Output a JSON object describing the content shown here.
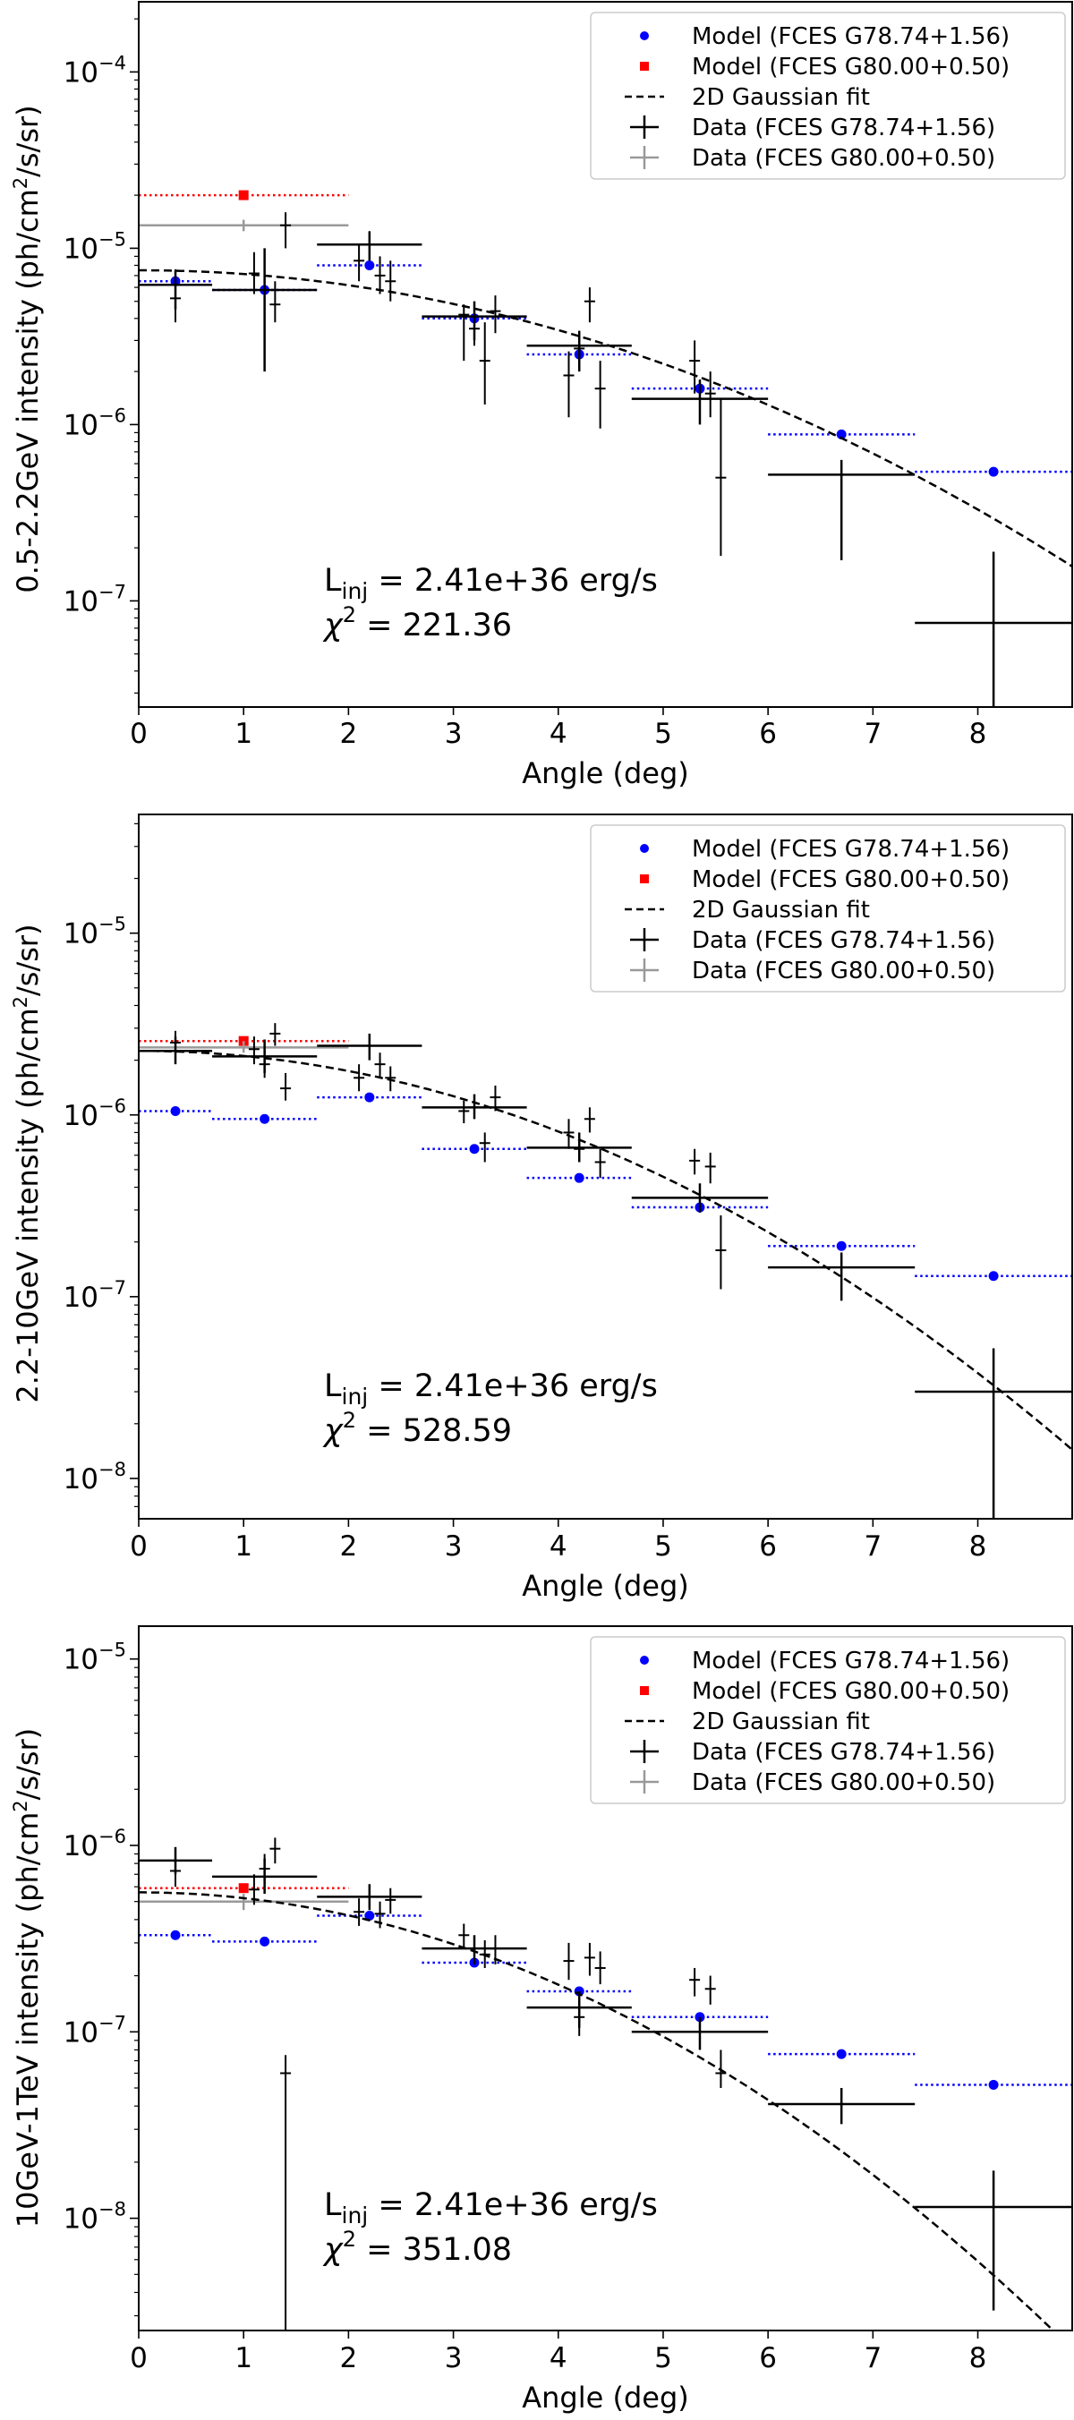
{
  "chart_data": [
    {
      "type": "scatter",
      "panel": "top",
      "xlabel": "Angle (deg)",
      "ylabel": "0.5-2.2GeV intensity (ph/cm2/s/sr)",
      "ylabel_parts": {
        "main": "0.5-2.2GeV intensity (ph/cm",
        "sup": "2",
        "tail": "/s/sr)"
      },
      "xlim": [
        0,
        8.9
      ],
      "ylim": [
        2.5e-08,
        0.00025
      ],
      "x_ticks": [
        "0",
        "1",
        "2",
        "3",
        "4",
        "5",
        "6",
        "7",
        "8"
      ],
      "y_ticks": [
        {
          "base": "10",
          "exp": "−7",
          "value": 1e-07
        },
        {
          "base": "10",
          "exp": "−6",
          "value": 1e-06
        },
        {
          "base": "10",
          "exp": "−5",
          "value": 1e-05
        },
        {
          "base": "10",
          "exp": "−4",
          "value": 0.0001
        }
      ],
      "annotation": {
        "linj_prefix": "L",
        "linj_sub": "inj",
        "linj_value": " = 2.41e+36 erg/s",
        "chi_prefix": "χ",
        "chi_sup": "2",
        "chi_value": " = 221.36"
      },
      "legend": [
        "Model (FCES G78.74+1.56)",
        "Model (FCES G80.00+0.50)",
        "2D Gaussian fit",
        "Data (FCES G78.74+1.56)",
        "Data (FCES G80.00+0.50)"
      ],
      "gauss_fit": {
        "amplitude": 7.5e-06,
        "sigma": 3.2
      },
      "model_g78": [
        {
          "x": 0.35,
          "y": 6.5e-06,
          "xlo": 0,
          "xhi": 0.7
        },
        {
          "x": 1.2,
          "y": 5.8e-06,
          "xlo": 0.7,
          "xhi": 1.7
        },
        {
          "x": 2.2,
          "y": 8e-06,
          "xlo": 1.7,
          "xhi": 2.7
        },
        {
          "x": 3.2,
          "y": 4e-06,
          "xlo": 2.7,
          "xhi": 3.7
        },
        {
          "x": 4.2,
          "y": 2.5e-06,
          "xlo": 3.7,
          "xhi": 4.7
        },
        {
          "x": 5.35,
          "y": 1.6e-06,
          "xlo": 4.7,
          "xhi": 6.0
        },
        {
          "x": 6.7,
          "y": 8.8e-07,
          "xlo": 6.0,
          "xhi": 7.4
        },
        {
          "x": 8.15,
          "y": 5.4e-07,
          "xlo": 7.4,
          "xhi": 8.9
        }
      ],
      "model_g80": [
        {
          "x": 1.0,
          "y": 2e-05,
          "xlo": 0,
          "xhi": 2.0
        }
      ],
      "data_g80": [
        {
          "x": 1.0,
          "y": 1.35e-05,
          "xlo": 0,
          "xhi": 2.0,
          "ylo": 1.25e-05,
          "yhi": 1.45e-05
        }
      ],
      "data_g78_binned": [
        {
          "x": 0.35,
          "y": 6.2e-06,
          "xlo": 0,
          "xhi": 0.7,
          "ylo": 4.5e-06,
          "yhi": 7.5e-06
        },
        {
          "x": 1.2,
          "y": 5.8e-06,
          "xlo": 0.7,
          "xhi": 1.7,
          "ylo": 2e-06,
          "yhi": 1e-05
        },
        {
          "x": 2.2,
          "y": 1.05e-05,
          "xlo": 1.7,
          "xhi": 2.7,
          "ylo": 8.5e-06,
          "yhi": 1.25e-05
        },
        {
          "x": 3.2,
          "y": 4.1e-06,
          "xlo": 2.7,
          "xhi": 3.7,
          "ylo": 3e-06,
          "yhi": 5e-06
        },
        {
          "x": 4.2,
          "y": 2.8e-06,
          "xlo": 3.7,
          "xhi": 4.7,
          "ylo": 2e-06,
          "yhi": 3.4e-06
        },
        {
          "x": 5.35,
          "y": 1.4e-06,
          "xlo": 4.7,
          "xhi": 6.0,
          "ylo": 1e-06,
          "yhi": 1.8e-06
        },
        {
          "x": 6.7,
          "y": 5.2e-07,
          "xlo": 6.0,
          "xhi": 7.4,
          "ylo": 1.7e-07,
          "yhi": 6.3e-07
        },
        {
          "x": 8.15,
          "y": 7.5e-08,
          "xlo": 7.4,
          "xhi": 8.9,
          "ylo": 2.5e-08,
          "yhi": 1.9e-07
        }
      ],
      "data_g78_points": [
        {
          "x": 0.35,
          "y": 5.2e-06,
          "ylo": 3.8e-06,
          "yhi": 7.6e-06
        },
        {
          "x": 1.1,
          "y": 7.2e-06,
          "ylo": 5.5e-06,
          "yhi": 9.5e-06
        },
        {
          "x": 1.3,
          "y": 4.8e-06,
          "ylo": 3.8e-06,
          "yhi": 6.5e-06
        },
        {
          "x": 1.4,
          "y": 1.35e-05,
          "ylo": 1e-05,
          "yhi": 1.6e-05
        },
        {
          "x": 2.1,
          "y": 8.5e-06,
          "ylo": 6.5e-06,
          "yhi": 1.05e-05
        },
        {
          "x": 2.3,
          "y": 7e-06,
          "ylo": 5.5e-06,
          "yhi": 9e-06
        },
        {
          "x": 2.4,
          "y": 6.5e-06,
          "ylo": 5e-06,
          "yhi": 8.5e-06
        },
        {
          "x": 3.1,
          "y": 4.2e-06,
          "ylo": 2.3e-06,
          "yhi": 4.8e-06
        },
        {
          "x": 3.2,
          "y": 3.5e-06,
          "ylo": 2.8e-06,
          "yhi": 5e-06
        },
        {
          "x": 3.3,
          "y": 2.3e-06,
          "ylo": 1.3e-06,
          "yhi": 3.8e-06
        },
        {
          "x": 3.4,
          "y": 4.4e-06,
          "ylo": 3.3e-06,
          "yhi": 5.4e-06
        },
        {
          "x": 4.1,
          "y": 1.9e-06,
          "ylo": 1.1e-06,
          "yhi": 2.6e-06
        },
        {
          "x": 4.2,
          "y": 2.7e-06,
          "ylo": 2e-06,
          "yhi": 3.4e-06
        },
        {
          "x": 4.3,
          "y": 5e-06,
          "ylo": 3.8e-06,
          "yhi": 6e-06
        },
        {
          "x": 4.4,
          "y": 1.6e-06,
          "ylo": 9.5e-07,
          "yhi": 2.3e-06
        },
        {
          "x": 5.3,
          "y": 2.3e-06,
          "ylo": 1.5e-06,
          "yhi": 3e-06
        },
        {
          "x": 5.45,
          "y": 1.5e-06,
          "ylo": 1.1e-06,
          "yhi": 2e-06
        },
        {
          "x": 5.55,
          "y": 5e-07,
          "ylo": 1.8e-07,
          "yhi": 1.4e-06
        }
      ]
    },
    {
      "type": "scatter",
      "panel": "middle",
      "xlabel": "Angle (deg)",
      "ylabel": "2.2-10GeV intensity (ph/cm2/s/sr)",
      "ylabel_parts": {
        "main": "2.2-10GeV intensity (ph/cm",
        "sup": "2",
        "tail": "/s/sr)"
      },
      "xlim": [
        0,
        8.9
      ],
      "ylim": [
        6e-09,
        4.5e-05
      ],
      "x_ticks": [
        "0",
        "1",
        "2",
        "3",
        "4",
        "5",
        "6",
        "7",
        "8"
      ],
      "y_ticks": [
        {
          "base": "10",
          "exp": "−8",
          "value": 1e-08
        },
        {
          "base": "10",
          "exp": "−7",
          "value": 1e-07
        },
        {
          "base": "10",
          "exp": "−6",
          "value": 1e-06
        },
        {
          "base": "10",
          "exp": "−5",
          "value": 1e-05
        }
      ],
      "annotation": {
        "linj_prefix": "L",
        "linj_sub": "inj",
        "linj_value": " = 2.41e+36 erg/s",
        "chi_prefix": "χ",
        "chi_sup": "2",
        "chi_value": " = 528.59"
      },
      "legend": [
        "Model (FCES G78.74+1.56)",
        "Model (FCES G80.00+0.50)",
        "2D Gaussian fit",
        "Data (FCES G78.74+1.56)",
        "Data (FCES G80.00+0.50)"
      ],
      "gauss_fit": {
        "amplitude": 2.25e-06,
        "sigma": 2.8
      },
      "model_g78": [
        {
          "x": 0.35,
          "y": 1.05e-06,
          "xlo": 0,
          "xhi": 0.7
        },
        {
          "x": 1.2,
          "y": 9.5e-07,
          "xlo": 0.7,
          "xhi": 1.7
        },
        {
          "x": 2.2,
          "y": 1.25e-06,
          "xlo": 1.7,
          "xhi": 2.7
        },
        {
          "x": 3.2,
          "y": 6.5e-07,
          "xlo": 2.7,
          "xhi": 3.7
        },
        {
          "x": 4.2,
          "y": 4.5e-07,
          "xlo": 3.7,
          "xhi": 4.7
        },
        {
          "x": 5.35,
          "y": 3.1e-07,
          "xlo": 4.7,
          "xhi": 6.0
        },
        {
          "x": 6.7,
          "y": 1.9e-07,
          "xlo": 6.0,
          "xhi": 7.4
        },
        {
          "x": 8.15,
          "y": 1.3e-07,
          "xlo": 7.4,
          "xhi": 8.9
        }
      ],
      "model_g80": [
        {
          "x": 1.0,
          "y": 2.55e-06,
          "xlo": 0,
          "xhi": 2.0
        }
      ],
      "data_g80": [
        {
          "x": 1.0,
          "y": 2.35e-06,
          "xlo": 0,
          "xhi": 2.0,
          "ylo": 2.2e-06,
          "yhi": 2.55e-06
        }
      ],
      "data_g78_binned": [
        {
          "x": 0.35,
          "y": 2.25e-06,
          "xlo": 0,
          "xhi": 0.7,
          "ylo": 1.9e-06,
          "yhi": 2.7e-06
        },
        {
          "x": 1.2,
          "y": 2.1e-06,
          "xlo": 0.7,
          "xhi": 1.7,
          "ylo": 1.7e-06,
          "yhi": 2.6e-06
        },
        {
          "x": 2.2,
          "y": 2.4e-06,
          "xlo": 1.7,
          "xhi": 2.7,
          "ylo": 2e-06,
          "yhi": 2.8e-06
        },
        {
          "x": 3.2,
          "y": 1.1e-06,
          "xlo": 2.7,
          "xhi": 3.7,
          "ylo": 9.5e-07,
          "yhi": 1.3e-06
        },
        {
          "x": 4.2,
          "y": 6.6e-07,
          "xlo": 3.7,
          "xhi": 4.7,
          "ylo": 5.5e-07,
          "yhi": 8e-07
        },
        {
          "x": 5.35,
          "y": 3.5e-07,
          "xlo": 4.7,
          "xhi": 6.0,
          "ylo": 2.9e-07,
          "yhi": 4.2e-07
        },
        {
          "x": 6.7,
          "y": 1.45e-07,
          "xlo": 6.0,
          "xhi": 7.4,
          "ylo": 9.5e-08,
          "yhi": 1.75e-07
        },
        {
          "x": 8.15,
          "y": 3e-08,
          "xlo": 7.4,
          "xhi": 8.9,
          "ylo": 6e-09,
          "yhi": 5.2e-08
        }
      ],
      "data_g78_points": [
        {
          "x": 0.35,
          "y": 2.5e-06,
          "ylo": 2.1e-06,
          "yhi": 2.9e-06
        },
        {
          "x": 1.1,
          "y": 2.3e-06,
          "ylo": 1.9e-06,
          "yhi": 2.7e-06
        },
        {
          "x": 1.2,
          "y": 1.9e-06,
          "ylo": 1.6e-06,
          "yhi": 2.3e-06
        },
        {
          "x": 1.3,
          "y": 2.8e-06,
          "ylo": 2.4e-06,
          "yhi": 3.2e-06
        },
        {
          "x": 1.4,
          "y": 1.4e-06,
          "ylo": 1.2e-06,
          "yhi": 1.7e-06
        },
        {
          "x": 2.1,
          "y": 1.6e-06,
          "ylo": 1.35e-06,
          "yhi": 1.9e-06
        },
        {
          "x": 2.3,
          "y": 1.9e-06,
          "ylo": 1.6e-06,
          "yhi": 2.2e-06
        },
        {
          "x": 2.4,
          "y": 1.6e-06,
          "ylo": 1.35e-06,
          "yhi": 1.85e-06
        },
        {
          "x": 3.1,
          "y": 1.05e-06,
          "ylo": 9e-07,
          "yhi": 1.2e-06
        },
        {
          "x": 3.2,
          "y": 1.1e-06,
          "ylo": 9.5e-07,
          "yhi": 1.25e-06
        },
        {
          "x": 3.3,
          "y": 7e-07,
          "ylo": 5.5e-07,
          "yhi": 8e-07
        },
        {
          "x": 3.4,
          "y": 1.25e-06,
          "ylo": 1.05e-06,
          "yhi": 1.45e-06
        },
        {
          "x": 4.1,
          "y": 8e-07,
          "ylo": 6.5e-07,
          "yhi": 9.5e-07
        },
        {
          "x": 4.2,
          "y": 6.5e-07,
          "ylo": 5.5e-07,
          "yhi": 7.5e-07
        },
        {
          "x": 4.3,
          "y": 9.5e-07,
          "ylo": 8e-07,
          "yhi": 1.1e-06
        },
        {
          "x": 4.4,
          "y": 5.5e-07,
          "ylo": 4.5e-07,
          "yhi": 6.5e-07
        },
        {
          "x": 5.3,
          "y": 5.6e-07,
          "ylo": 4.7e-07,
          "yhi": 6.5e-07
        },
        {
          "x": 5.45,
          "y": 5.2e-07,
          "ylo": 4.2e-07,
          "yhi": 6.2e-07
        },
        {
          "x": 5.55,
          "y": 1.8e-07,
          "ylo": 1.1e-07,
          "yhi": 2.8e-07
        }
      ]
    },
    {
      "type": "scatter",
      "panel": "bottom",
      "xlabel": "Angle (deg)",
      "ylabel": "10GeV-1TeV intensity (ph/cm2/s/sr)",
      "ylabel_parts": {
        "main": "10GeV-1TeV intensity (ph/cm",
        "sup": "2",
        "tail": "/s/sr)"
      },
      "xlim": [
        0,
        8.9
      ],
      "ylim": [
        2.5e-09,
        1.5e-05
      ],
      "x_ticks": [
        "0",
        "1",
        "2",
        "3",
        "4",
        "5",
        "6",
        "7",
        "8"
      ],
      "y_ticks": [
        {
          "base": "10",
          "exp": "−8",
          "value": 1e-08
        },
        {
          "base": "10",
          "exp": "−7",
          "value": 1e-07
        },
        {
          "base": "10",
          "exp": "−6",
          "value": 1e-06
        },
        {
          "base": "10",
          "exp": "−5",
          "value": 1e-05
        }
      ],
      "annotation": {
        "linj_prefix": "L",
        "linj_sub": "inj",
        "linj_value": " = 2.41e+36 erg/s",
        "chi_prefix": "χ",
        "chi_sup": "2",
        "chi_value": " = 351.08"
      },
      "legend": [
        "Model (FCES G78.74+1.56)",
        "Model (FCES G80.00+0.50)",
        "2D Gaussian fit",
        "Data (FCES G78.74+1.56)",
        "Data (FCES G80.00+0.50)"
      ],
      "gauss_fit": {
        "amplitude": 5.6e-07,
        "sigma": 2.65
      },
      "model_g78": [
        {
          "x": 0.35,
          "y": 3.3e-07,
          "xlo": 0,
          "xhi": 0.7
        },
        {
          "x": 1.2,
          "y": 3.05e-07,
          "xlo": 0.7,
          "xhi": 1.7
        },
        {
          "x": 2.2,
          "y": 4.2e-07,
          "xlo": 1.7,
          "xhi": 2.7
        },
        {
          "x": 3.2,
          "y": 2.35e-07,
          "xlo": 2.7,
          "xhi": 3.7
        },
        {
          "x": 4.2,
          "y": 1.65e-07,
          "xlo": 3.7,
          "xhi": 4.7
        },
        {
          "x": 5.35,
          "y": 1.2e-07,
          "xlo": 4.7,
          "xhi": 6.0
        },
        {
          "x": 6.7,
          "y": 7.6e-08,
          "xlo": 6.0,
          "xhi": 7.4
        },
        {
          "x": 8.15,
          "y": 5.2e-08,
          "xlo": 7.4,
          "xhi": 8.9
        }
      ],
      "model_g80": [
        {
          "x": 1.0,
          "y": 5.9e-07,
          "xlo": 0,
          "xhi": 2.0
        }
      ],
      "data_g80": [
        {
          "x": 1.0,
          "y": 5e-07,
          "xlo": 0,
          "xhi": 2.0,
          "ylo": 4.5e-07,
          "yhi": 5.5e-07
        }
      ],
      "data_g78_binned": [
        {
          "x": 0.35,
          "y": 8.3e-07,
          "xlo": 0,
          "xhi": 0.7,
          "ylo": 7e-07,
          "yhi": 9.8e-07
        },
        {
          "x": 1.2,
          "y": 6.8e-07,
          "xlo": 0.7,
          "xhi": 1.7,
          "ylo": 5.5e-07,
          "yhi": 8.5e-07
        },
        {
          "x": 2.2,
          "y": 5.3e-07,
          "xlo": 1.7,
          "xhi": 2.7,
          "ylo": 4.5e-07,
          "yhi": 6.2e-07
        },
        {
          "x": 3.2,
          "y": 2.8e-07,
          "xlo": 2.7,
          "xhi": 3.7,
          "ylo": 2.3e-07,
          "yhi": 3.3e-07
        },
        {
          "x": 4.2,
          "y": 1.35e-07,
          "xlo": 3.7,
          "xhi": 4.7,
          "ylo": 1.05e-07,
          "yhi": 1.65e-07
        },
        {
          "x": 5.35,
          "y": 1e-07,
          "xlo": 4.7,
          "xhi": 6.0,
          "ylo": 8e-08,
          "yhi": 1.2e-07
        },
        {
          "x": 6.7,
          "y": 4.1e-08,
          "xlo": 6.0,
          "xhi": 7.4,
          "ylo": 3.2e-08,
          "yhi": 5e-08
        },
        {
          "x": 8.15,
          "y": 1.15e-08,
          "xlo": 7.4,
          "xhi": 8.9,
          "ylo": 3.2e-09,
          "yhi": 1.8e-08
        }
      ],
      "data_g78_points": [
        {
          "x": 0.35,
          "y": 7.3e-07,
          "ylo": 6e-07,
          "yhi": 9.5e-07
        },
        {
          "x": 1.1,
          "y": 5.8e-07,
          "ylo": 4.8e-07,
          "yhi": 7e-07
        },
        {
          "x": 1.2,
          "y": 7.5e-07,
          "ylo": 6.2e-07,
          "yhi": 9e-07
        },
        {
          "x": 1.3,
          "y": 9.6e-07,
          "ylo": 8e-07,
          "yhi": 1.1e-06
        },
        {
          "x": 1.4,
          "y": 6e-08,
          "ylo": 2.5e-09,
          "yhi": 7.5e-08
        },
        {
          "x": 2.1,
          "y": 4.4e-07,
          "ylo": 3.7e-07,
          "yhi": 5.2e-07
        },
        {
          "x": 2.3,
          "y": 4.3e-07,
          "ylo": 3.6e-07,
          "yhi": 5e-07
        },
        {
          "x": 2.4,
          "y": 5.1e-07,
          "ylo": 4.3e-07,
          "yhi": 5.9e-07
        },
        {
          "x": 3.1,
          "y": 3.3e-07,
          "ylo": 2.8e-07,
          "yhi": 3.8e-07
        },
        {
          "x": 3.3,
          "y": 2.6e-07,
          "ylo": 2.2e-07,
          "yhi": 3.1e-07
        },
        {
          "x": 3.4,
          "y": 2.8e-07,
          "ylo": 2.3e-07,
          "yhi": 3.3e-07
        },
        {
          "x": 4.1,
          "y": 2.4e-07,
          "ylo": 1.9e-07,
          "yhi": 3e-07
        },
        {
          "x": 4.2,
          "y": 1.2e-07,
          "ylo": 9.5e-08,
          "yhi": 1.45e-07
        },
        {
          "x": 4.3,
          "y": 2.5e-07,
          "ylo": 2e-07,
          "yhi": 3e-07
        },
        {
          "x": 4.4,
          "y": 2.2e-07,
          "ylo": 1.8e-07,
          "yhi": 2.7e-07
        },
        {
          "x": 5.3,
          "y": 1.9e-07,
          "ylo": 1.55e-07,
          "yhi": 2.2e-07
        },
        {
          "x": 5.45,
          "y": 1.7e-07,
          "ylo": 1.4e-07,
          "yhi": 2e-07
        },
        {
          "x": 5.55,
          "y": 6e-08,
          "ylo": 5e-08,
          "yhi": 8e-08
        }
      ]
    }
  ],
  "colors": {
    "model_g78": "#0000ff",
    "model_g80": "#ff0000",
    "data_g78": "#000000",
    "data_g80": "#999999",
    "fit": "#000000"
  }
}
